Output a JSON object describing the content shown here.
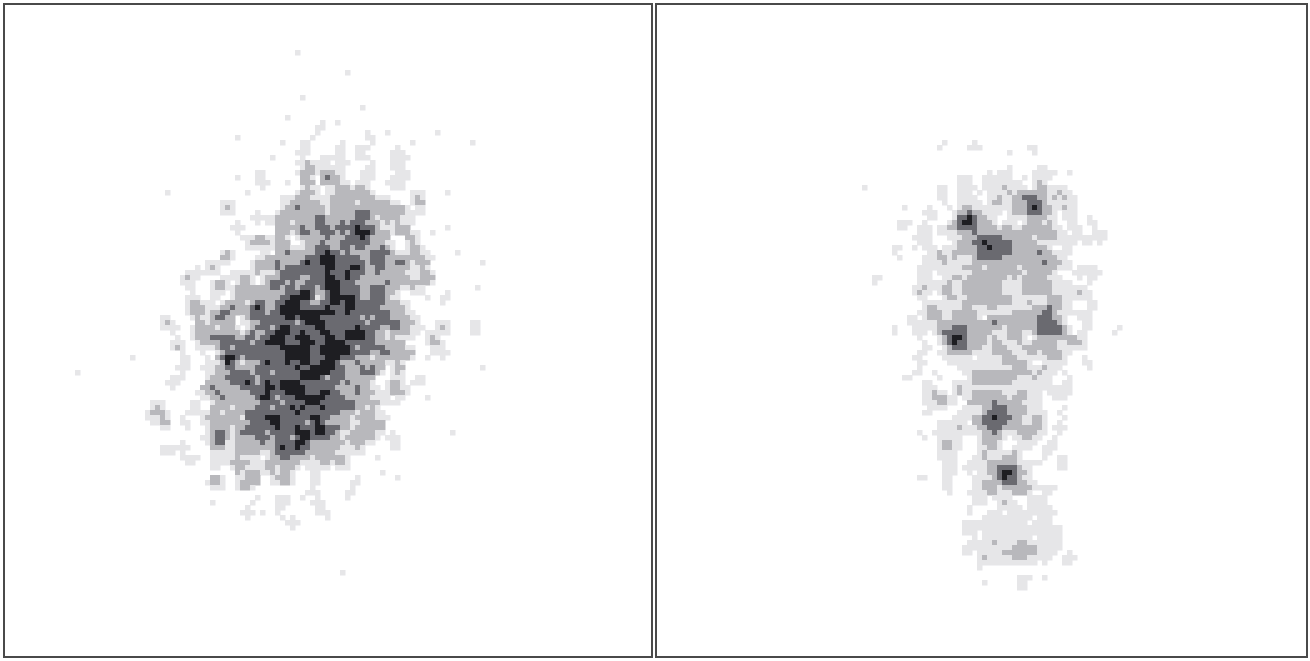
{
  "chart_data": [
    {
      "type": "heatmap",
      "panel": "left",
      "axes_visible": false,
      "grid": false,
      "colormap": [
        "#ffffff",
        "#e6e6e8",
        "#b8b8bc",
        "#6a6a70",
        "#1e1e22"
      ],
      "clusters": [
        {
          "center": [
            0.47,
            0.51
          ],
          "spread": [
            0.085,
            0.105
          ],
          "count": 1500,
          "tilt": -0.25
        },
        {
          "center": [
            0.52,
            0.35
          ],
          "spread": [
            0.055,
            0.08
          ],
          "count": 220,
          "tilt": 0
        },
        {
          "center": [
            0.43,
            0.62
          ],
          "spread": [
            0.05,
            0.06
          ],
          "count": 220,
          "tilt": 0
        }
      ],
      "peak_location": [
        0.47,
        0.52
      ],
      "peak_density": 1.0
    },
    {
      "type": "heatmap",
      "panel": "right",
      "axes_visible": false,
      "grid": false,
      "colormap": [
        "#ffffff",
        "#e6e6e8",
        "#b8b8bc",
        "#6a6a70",
        "#1e1e22"
      ],
      "clusters": [
        {
          "center": [
            0.53,
            0.42
          ],
          "spread": [
            0.085,
            0.1
          ],
          "count": 1100,
          "tilt": 0
        },
        {
          "center": [
            0.52,
            0.65
          ],
          "spread": [
            0.06,
            0.085
          ],
          "count": 420,
          "tilt": 0
        },
        {
          "center": [
            0.55,
            0.83
          ],
          "spread": [
            0.045,
            0.05
          ],
          "count": 160,
          "tilt": 0
        },
        {
          "center": [
            0.5,
            0.5
          ],
          "spread": [
            0.4,
            0.45
          ],
          "count": 260,
          "tilt": 0
        }
      ],
      "hotspots": [
        [
          0.48,
          0.33
        ],
        [
          0.52,
          0.37
        ],
        [
          0.46,
          0.51
        ],
        [
          0.6,
          0.49
        ],
        [
          0.52,
          0.63
        ],
        [
          0.54,
          0.72
        ],
        [
          0.58,
          0.3
        ]
      ],
      "peak_density": 0.8
    }
  ]
}
